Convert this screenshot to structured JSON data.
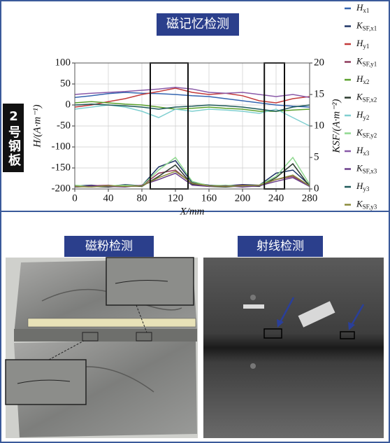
{
  "chart_data": {
    "type": "line",
    "title": "磁记忆检测",
    "x": [
      0,
      20,
      40,
      60,
      80,
      100,
      120,
      140,
      160,
      180,
      200,
      220,
      240,
      260,
      280
    ],
    "xlim": [
      0,
      280
    ],
    "xticks": [
      0,
      40,
      80,
      120,
      160,
      200,
      240,
      280
    ],
    "ylim": [
      -200,
      100
    ],
    "yticks": [
      -200,
      -150,
      -100,
      -50,
      0,
      50,
      100
    ],
    "y2lim": [
      0,
      20
    ],
    "y2ticks": [
      0,
      5,
      10,
      15,
      20
    ],
    "xlabel": "X/mm",
    "ylabel": "H/(A·m⁻¹)",
    "y2label": "KSF/(A·m⁻²)",
    "grid": true,
    "highlight_ranges": [
      [
        90,
        135
      ],
      [
        226,
        250
      ]
    ],
    "series": [
      {
        "name": "Hx1",
        "color": "#3465b0",
        "values": [
          18,
          22,
          27,
          30,
          28,
          27,
          25,
          22,
          20,
          15,
          10,
          5,
          0,
          -3,
          -5
        ]
      },
      {
        "name": "KSF,x1",
        "color": "#1f3566",
        "axis": "y2",
        "values": [
          0.5,
          0.6,
          0.4,
          0.7,
          0.5,
          3.5,
          4.5,
          1.0,
          0.6,
          0.5,
          0.7,
          0.6,
          2.5,
          3.0,
          0.6
        ]
      },
      {
        "name": "Hy1",
        "color": "#c33a3a",
        "values": [
          -5,
          0,
          8,
          15,
          25,
          32,
          40,
          30,
          25,
          28,
          22,
          10,
          5,
          15,
          20
        ]
      },
      {
        "name": "KSF,y1",
        "color": "#8e3a5c",
        "axis": "y2",
        "values": [
          0.4,
          0.5,
          0.6,
          0.4,
          0.5,
          2.5,
          3.0,
          0.8,
          0.5,
          0.4,
          0.6,
          0.5,
          1.5,
          2.0,
          0.5
        ]
      },
      {
        "name": "Hx2",
        "color": "#5aa02c",
        "values": [
          5,
          8,
          5,
          2,
          0,
          -5,
          -10,
          -8,
          -5,
          -8,
          -10,
          -15,
          -15,
          -12,
          -10
        ]
      },
      {
        "name": "KSF,x2",
        "color": "#2b3a2e",
        "axis": "y2",
        "values": [
          0.3,
          0.4,
          0.3,
          0.5,
          0.4,
          2.0,
          3.8,
          0.7,
          0.4,
          0.3,
          0.5,
          0.4,
          1.8,
          4.0,
          0.4
        ]
      },
      {
        "name": "Hy2",
        "color": "#7fcfd0",
        "values": [
          -10,
          -5,
          0,
          -5,
          -15,
          -30,
          -10,
          -15,
          -10,
          -12,
          -15,
          -20,
          -10,
          -30,
          -50
        ]
      },
      {
        "name": "KSF,y2",
        "color": "#8fd88f",
        "axis": "y2",
        "values": [
          0.6,
          0.4,
          0.5,
          0.6,
          0.5,
          3.0,
          5.0,
          1.2,
          0.5,
          0.6,
          0.4,
          0.6,
          2.0,
          5.0,
          0.7
        ]
      },
      {
        "name": "Hx3",
        "color": "#8a5aa8",
        "values": [
          25,
          28,
          30,
          32,
          35,
          38,
          42,
          38,
          30,
          28,
          30,
          25,
          20,
          25,
          18
        ]
      },
      {
        "name": "KSF,x3",
        "color": "#6b3f8a",
        "axis": "y2",
        "values": [
          0.3,
          0.5,
          0.4,
          0.3,
          0.6,
          1.5,
          2.5,
          0.6,
          0.4,
          0.5,
          0.3,
          0.5,
          1.2,
          1.8,
          0.4
        ]
      },
      {
        "name": "Hy3",
        "color": "#1f5a5a",
        "values": [
          0,
          2,
          0,
          -2,
          -5,
          -10,
          -5,
          -3,
          0,
          -2,
          -5,
          -10,
          -15,
          -5,
          0
        ]
      },
      {
        "name": "KSF,y3",
        "color": "#8a8a3a",
        "axis": "y2",
        "values": [
          0.4,
          0.3,
          0.5,
          0.4,
          0.5,
          1.8,
          2.8,
          0.9,
          0.5,
          0.4,
          0.5,
          0.6,
          1.5,
          2.2,
          0.5
        ]
      }
    ]
  },
  "side_label": "2号钢板",
  "photos": {
    "left_title": "磁粉检测",
    "right_title": "射线检测"
  }
}
